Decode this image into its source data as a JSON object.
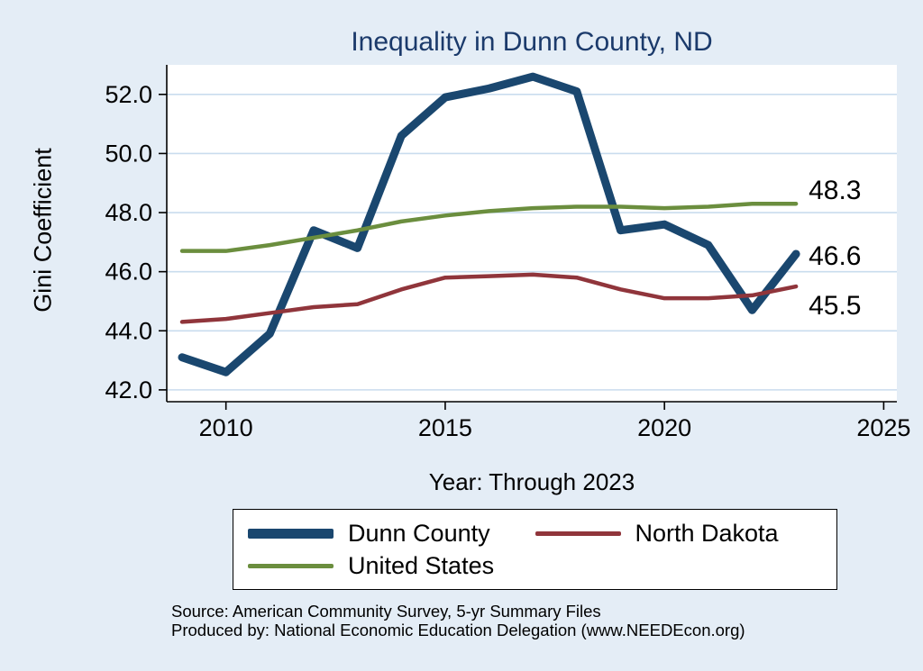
{
  "title": "Inequality in Dunn County, ND",
  "colors": {
    "background": "#e4edf6",
    "plot_background": "#ffffff",
    "grid": "#c9dcee",
    "axis": "#000000",
    "title": "#1b3a6b",
    "dunn": "#1a476f",
    "north_dakota": "#90353b",
    "united_states": "#6b8e3e"
  },
  "chart_data": {
    "type": "line",
    "title": "Inequality in Dunn County, ND",
    "xlabel": "Year: Through 2023",
    "ylabel": "Gini Coefficient",
    "x": [
      2009,
      2010,
      2011,
      2012,
      2013,
      2014,
      2015,
      2016,
      2017,
      2018,
      2019,
      2020,
      2021,
      2022,
      2023
    ],
    "series": [
      {
        "name": "Dunn County",
        "color_key": "dunn",
        "width": 9,
        "values": [
          43.1,
          42.6,
          43.9,
          47.4,
          46.8,
          50.6,
          51.9,
          52.2,
          52.6,
          52.1,
          47.4,
          47.6,
          46.9,
          44.7,
          46.6
        ],
        "end_label": "46.6"
      },
      {
        "name": "North Dakota",
        "color_key": "north_dakota",
        "width": 4.5,
        "values": [
          44.3,
          44.4,
          44.6,
          44.8,
          44.9,
          45.4,
          45.8,
          45.85,
          45.9,
          45.8,
          45.4,
          45.1,
          45.1,
          45.2,
          45.5
        ],
        "end_label": "45.5"
      },
      {
        "name": "United States",
        "color_key": "united_states",
        "width": 4.5,
        "values": [
          46.7,
          46.7,
          46.9,
          47.15,
          47.4,
          47.7,
          47.9,
          48.05,
          48.15,
          48.2,
          48.2,
          48.15,
          48.2,
          48.3,
          48.3
        ],
        "end_label": "48.3"
      }
    ],
    "xticks": [
      2010,
      2015,
      2020,
      2025
    ],
    "yticks": [
      42.0,
      44.0,
      46.0,
      48.0,
      50.0,
      52.0
    ],
    "xlim": [
      2008.65,
      2025.3
    ],
    "ylim": [
      41.6,
      53.0
    ],
    "grid": true,
    "legend_position": "bottom"
  },
  "legend": {
    "items": [
      {
        "label": "Dunn County",
        "color_key": "dunn",
        "thick": true
      },
      {
        "label": "North Dakota",
        "color_key": "north_dakota",
        "thick": false
      },
      {
        "label": "United States",
        "color_key": "united_states",
        "thick": false
      }
    ]
  },
  "footer": {
    "source_line": "Source: American Community Survey, 5-yr Summary Files",
    "produced_line": "Produced by: National Economic Education Delegation (www.NEEDEcon.org)"
  }
}
